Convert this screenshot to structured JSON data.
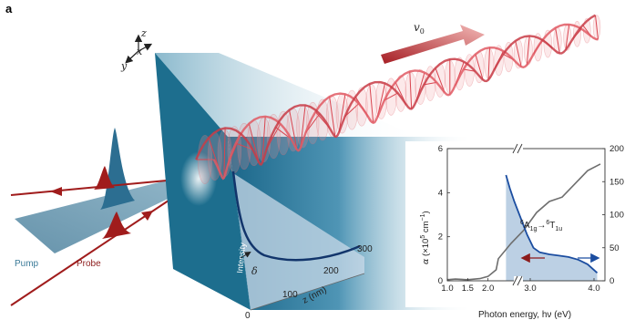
{
  "panel_label": "a",
  "axes_triad": {
    "z": "z",
    "x": "x",
    "y": "y"
  },
  "velocity_label": "v",
  "velocity_sub": "0",
  "beam_labels": {
    "pump": "Pump",
    "probe": "Probe"
  },
  "decay": {
    "intensity_label": "Intensity",
    "delta_label": "δ",
    "z_axis_label": "z (nm)",
    "z_ticks": [
      "0",
      "100",
      "200",
      "300"
    ]
  },
  "colors": {
    "pump": "#4d7f9a",
    "probe": "#a01c1c",
    "crystal": "#1d6e8e",
    "spin_wave": "#e05a64",
    "alpha_curve": "#6e6e6e",
    "absorption_fill": "#bcd0e4",
    "blue_curve": "#1b4da0"
  },
  "chart_data": {
    "type": "line",
    "title": "",
    "xlabel": "Photon energy, hν (eV)",
    "ylabel_left": "α (×10^5 cm^-1)",
    "ylabel_right": "",
    "x_ticks": [
      "1.0",
      "1.5",
      "2.0",
      "3.0",
      "4.0"
    ],
    "y_left_ticks": [
      "0",
      "2",
      "4",
      "6"
    ],
    "y_right_ticks": [
      "0",
      "50",
      "100",
      "150",
      "200"
    ],
    "xlim": [
      1.0,
      4.1
    ],
    "ylim_left": [
      0,
      6
    ],
    "ylim_right": [
      0,
      200
    ],
    "axis_break": "between 2.0 and 3.0 eV",
    "annotation": {
      "from": "6A1g",
      "arrow": "→",
      "to": "6T1u"
    },
    "series": [
      {
        "axis": "left",
        "color": "#6e6e6e",
        "x": [
          1.0,
          1.2,
          1.5,
          1.8,
          2.0,
          2.2,
          2.5,
          2.7,
          2.9,
          3.1,
          3.3,
          3.5,
          3.7,
          3.9,
          4.1
        ],
        "y": [
          0.05,
          0.08,
          0.05,
          0.1,
          0.2,
          0.5,
          1.0,
          1.7,
          2.3,
          3.1,
          3.6,
          3.8,
          4.4,
          5.0,
          5.3
        ]
      },
      {
        "axis": "right",
        "color": "#1b4da0",
        "x": [
          2.62,
          2.68,
          2.75,
          2.85,
          2.95,
          3.05,
          3.15,
          3.3,
          3.45,
          3.6,
          3.75,
          3.9,
          4.05
        ],
        "y": [
          160,
          140,
          120,
          95,
          70,
          50,
          43,
          40,
          38,
          36,
          32,
          25,
          12
        ]
      }
    ]
  }
}
